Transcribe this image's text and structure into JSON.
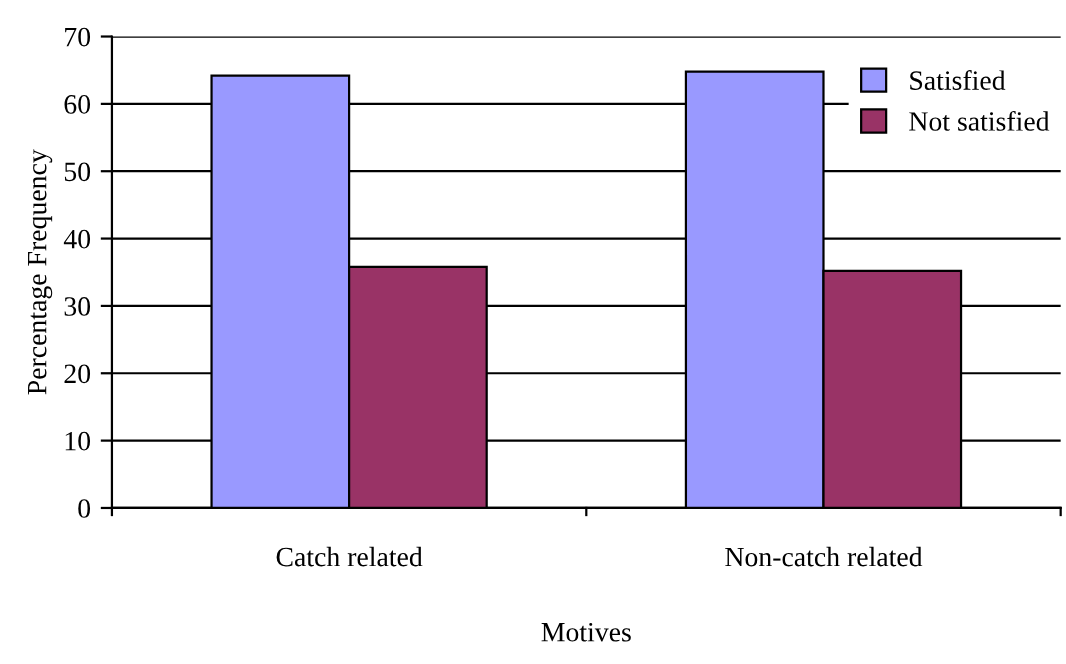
{
  "chart_data": {
    "type": "bar",
    "xlabel": "Motives",
    "ylabel": "Percentage Frequency",
    "categories": [
      "Catch related",
      "Non-catch related"
    ],
    "series": [
      {
        "name": "Satisfied",
        "color": "#9999ff",
        "values": [
          64.2,
          64.8
        ]
      },
      {
        "name": "Not satisfied",
        "color": "#993366",
        "values": [
          35.8,
          35.2
        ]
      }
    ],
    "ylim": [
      0,
      70
    ],
    "yticks": [
      0,
      10,
      20,
      30,
      40,
      50,
      60,
      70
    ],
    "grid": "y",
    "legend": "right"
  }
}
